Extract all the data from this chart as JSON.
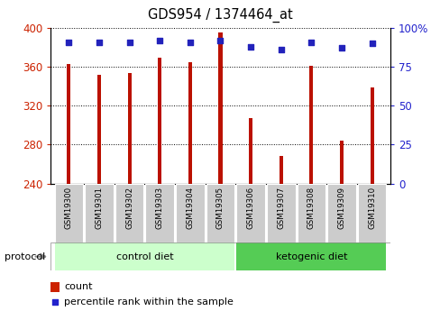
{
  "title": "GDS954 / 1374464_at",
  "samples": [
    "GSM19300",
    "GSM19301",
    "GSM19302",
    "GSM19303",
    "GSM19304",
    "GSM19305",
    "GSM19306",
    "GSM19307",
    "GSM19308",
    "GSM19309",
    "GSM19310"
  ],
  "counts": [
    363,
    352,
    354,
    369,
    365,
    395,
    307,
    268,
    361,
    284,
    339
  ],
  "percentile_ranks": [
    91,
    91,
    91,
    92,
    91,
    92,
    88,
    86,
    91,
    87,
    90
  ],
  "ylim_left": [
    240,
    400
  ],
  "ylim_right": [
    0,
    100
  ],
  "yticks_left": [
    240,
    280,
    320,
    360,
    400
  ],
  "yticks_right": [
    0,
    25,
    50,
    75,
    100
  ],
  "groups": [
    {
      "label": "control diet",
      "color": "#ccffcc",
      "start": 0,
      "end": 5
    },
    {
      "label": "ketogenic diet",
      "color": "#55cc55",
      "start": 6,
      "end": 10
    }
  ],
  "protocol_label": "protocol",
  "bar_color": "#bb1100",
  "dot_color": "#2222bb",
  "bar_width": 0.12,
  "tick_label_color_left": "#cc2200",
  "tick_label_color_right": "#2222cc",
  "title_color": "#000000",
  "sample_bg_color": "#cccccc",
  "legend_count_color": "#cc2200",
  "legend_dot_color": "#2222cc"
}
